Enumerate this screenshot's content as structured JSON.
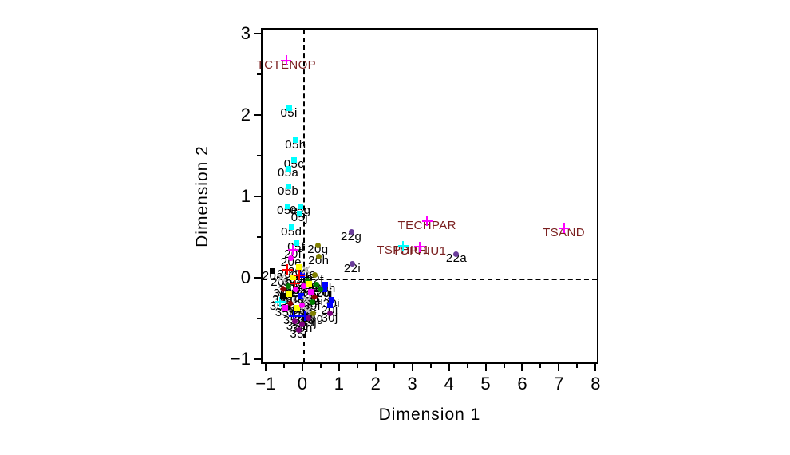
{
  "colors": {
    "background": "#ffffff",
    "axis": "#000000",
    "point_label": "#000000",
    "supplementary_label": "#7a1f1f",
    "magenta": "#ff00ff",
    "cyan": "#00ffff",
    "purple": "#6a3d9a"
  },
  "chart_data": {
    "type": "scatter",
    "title": "",
    "xlabel": "Dimension 1",
    "ylabel": "Dimension 2",
    "xlim": [
      -1.13,
      8.08
    ],
    "ylim": [
      -1.06,
      3.07
    ],
    "grid": false,
    "legend": "none",
    "reference_lines": {
      "x_zero": 0,
      "y_zero": 0,
      "style": "dashed"
    },
    "x_major_ticks": [
      -1,
      0,
      1,
      2,
      3,
      4,
      5,
      6,
      7,
      8
    ],
    "x_tick_labels": [
      "−1",
      "0",
      "1",
      "2",
      "3",
      "4",
      "5",
      "6",
      "7",
      "8"
    ],
    "x_minor_ticks": [
      -0.5,
      0.5,
      1.5,
      2.5,
      3.5,
      4.5,
      5.5,
      6.5,
      7.5
    ],
    "y_major_ticks": [
      3,
      2,
      1,
      0,
      -1
    ],
    "y_tick_labels": [
      "3",
      "2",
      "1",
      "0",
      "−1"
    ],
    "y_minor_ticks": [
      2.5,
      1.5,
      0.5,
      -0.5
    ],
    "series": [
      {
        "name": "supplementary-variables",
        "label_color": "#7a1f1f",
        "points": [
          {
            "label": "TCTENOP",
            "x": -0.48,
            "y": 2.69,
            "marker": "plus",
            "color": "#ff00ff"
          },
          {
            "label": "TECHPAR",
            "x": 3.36,
            "y": 0.72,
            "marker": "plus",
            "color": "#ff00ff"
          },
          {
            "label": "TSPHIU1",
            "x": 2.71,
            "y": 0.41,
            "marker": "plus",
            "color": "#00ffff"
          },
          {
            "label": "TOPHIU1",
            "x": 3.15,
            "y": 0.4,
            "marker": "plus",
            "color": "#ff00ff"
          },
          {
            "label": "TSAND",
            "x": 7.09,
            "y": 0.63,
            "marker": "plus",
            "color": "#ff00ff"
          }
        ]
      },
      {
        "name": "05-series",
        "label_color": "#000000",
        "points": [
          {
            "label": "05i",
            "x": -0.41,
            "y": 2.1,
            "marker": "square",
            "color": "#00ffff"
          },
          {
            "label": "05h",
            "x": -0.23,
            "y": 1.71,
            "marker": "square",
            "color": "#00ffff"
          },
          {
            "label": "05c",
            "x": -0.27,
            "y": 1.47,
            "marker": "square",
            "color": "#00ffff"
          },
          {
            "label": "05a",
            "x": -0.43,
            "y": 1.36,
            "marker": "square",
            "color": "#00ffff"
          },
          {
            "label": "05b",
            "x": -0.43,
            "y": 1.14,
            "marker": "square",
            "color": "#00ffff"
          },
          {
            "label": "05e",
            "x": -0.45,
            "y": 0.9,
            "marker": "square",
            "color": "#00ffff"
          },
          {
            "label": "05g",
            "x": -0.1,
            "y": 0.9,
            "marker": "square",
            "color": "#00ffff"
          },
          {
            "label": "05j",
            "x": -0.12,
            "y": 0.81,
            "marker": "square",
            "color": "#00ffff"
          },
          {
            "label": "05d",
            "x": -0.34,
            "y": 0.64,
            "marker": "square",
            "color": "#00ffff"
          },
          {
            "label": "05f",
            "x": -0.21,
            "y": 0.45,
            "marker": "square",
            "color": "#00ffff"
          }
        ]
      },
      {
        "name": "22-series-outliers",
        "label_color": "#000000",
        "points": [
          {
            "label": "22g",
            "x": 1.29,
            "y": 0.58,
            "marker": "circle",
            "color": "#6a3d9a"
          },
          {
            "label": "22i",
            "x": 1.32,
            "y": 0.19,
            "marker": "circle",
            "color": "#6a3d9a"
          },
          {
            "label": "22a",
            "x": 4.16,
            "y": 0.31,
            "marker": "circle",
            "color": "#6a3d9a"
          }
        ]
      },
      {
        "name": "origin-cluster",
        "label_color": "#000000",
        "points": [
          {
            "label": "20f",
            "x": -0.3,
            "y": 0.36,
            "marker": "plus",
            "color": "#ff00ff"
          },
          {
            "label": "20e",
            "x": -0.35,
            "y": 0.26,
            "marker": "circle",
            "color": "#ff00ff"
          },
          {
            "label": "20g",
            "x": 0.38,
            "y": 0.42,
            "marker": "circle",
            "color": "#808000"
          },
          {
            "label": "20h",
            "x": 0.4,
            "y": 0.28,
            "marker": "circle",
            "color": "#808000"
          },
          {
            "label": "20a",
            "x": -0.85,
            "y": 0.1,
            "marker": "square",
            "color": "#000000"
          },
          {
            "label": "20b",
            "x": -0.62,
            "y": 0.02,
            "marker": "x",
            "color": "#c0c0c0"
          },
          {
            "label": "20c",
            "x": -0.45,
            "y": 0.12,
            "marker": "plus",
            "color": "#ff0000"
          },
          {
            "label": "20d",
            "x": -0.15,
            "y": 0.15,
            "marker": "square",
            "color": "#ffff00"
          },
          {
            "label": "20i",
            "x": 0.55,
            "y": -0.12,
            "marker": "square",
            "color": "#0000ff"
          },
          {
            "label": "20j",
            "x": 0.7,
            "y": -0.32,
            "marker": "square",
            "color": "#0000ff"
          },
          {
            "label": "22b",
            "x": -0.05,
            "y": 0.05,
            "marker": "square",
            "color": "#0000ff"
          },
          {
            "label": "22c",
            "x": 0.1,
            "y": -0.02,
            "marker": "circle",
            "color": "#008000"
          },
          {
            "label": "22d",
            "x": -0.25,
            "y": -0.05,
            "marker": "plus",
            "color": "#ff0000"
          },
          {
            "label": "22e",
            "x": 0.05,
            "y": 0.12,
            "marker": "x",
            "color": "#c0c0c0"
          },
          {
            "label": "22f",
            "x": 0.3,
            "y": 0.05,
            "marker": "circle",
            "color": "#808000"
          },
          {
            "label": "22h",
            "x": 0.35,
            "y": -0.06,
            "marker": "circle",
            "color": "#008000"
          },
          {
            "label": "22j",
            "x": 0.18,
            "y": -0.15,
            "marker": "square",
            "color": "#ff00ff"
          },
          {
            "label": "30a",
            "x": -0.55,
            "y": -0.12,
            "marker": "diamond",
            "color": "#8b0000"
          },
          {
            "label": "30b",
            "x": -0.4,
            "y": -0.18,
            "marker": "square",
            "color": "#ffff00"
          },
          {
            "label": "30c",
            "x": -0.22,
            "y": -0.12,
            "marker": "circle",
            "color": "#ff00ff"
          },
          {
            "label": "30d",
            "x": -0.08,
            "y": -0.2,
            "marker": "square",
            "color": "#0000ff"
          },
          {
            "label": "30e",
            "x": 0.08,
            "y": -0.25,
            "marker": "x",
            "color": "#c0c0c0"
          },
          {
            "label": "30f",
            "x": 0.22,
            "y": -0.28,
            "marker": "circle",
            "color": "#008000"
          },
          {
            "label": "30g",
            "x": 0.45,
            "y": -0.12,
            "marker": "circle",
            "color": "#008000"
          },
          {
            "label": "30h",
            "x": 0.58,
            "y": -0.06,
            "marker": "square",
            "color": "#0000ff"
          },
          {
            "label": "30i",
            "x": 0.75,
            "y": -0.25,
            "marker": "square",
            "color": "#0000ff"
          },
          {
            "label": "30j",
            "x": 0.7,
            "y": -0.42,
            "marker": "circle",
            "color": "#800080"
          },
          {
            "label": "35a",
            "x": -0.65,
            "y": -0.28,
            "marker": "plus",
            "color": "#00ffff"
          },
          {
            "label": "35b",
            "x": -0.5,
            "y": -0.35,
            "marker": "square",
            "color": "#ff00ff"
          },
          {
            "label": "35c",
            "x": -0.35,
            "y": -0.3,
            "marker": "diamond",
            "color": "#8b0000"
          },
          {
            "label": "35d",
            "x": -0.18,
            "y": -0.35,
            "marker": "square",
            "color": "#ffff00"
          },
          {
            "label": "35e",
            "x": -0.05,
            "y": -0.32,
            "marker": "circle",
            "color": "#ff00ff"
          },
          {
            "label": "35f",
            "x": 0.1,
            "y": -0.38,
            "marker": "x",
            "color": "#c0c0c0"
          },
          {
            "label": "35g",
            "x": 0.25,
            "y": -0.42,
            "marker": "circle",
            "color": "#808000"
          },
          {
            "label": "35h",
            "x": -0.28,
            "y": -0.45,
            "marker": "plus",
            "color": "#0000ff"
          },
          {
            "label": "35j",
            "x": -0.25,
            "y": -0.52,
            "marker": "circle",
            "color": "#800080"
          },
          {
            "label": "35i",
            "x": -0.15,
            "y": -0.62,
            "marker": "circle",
            "color": "#800080"
          },
          {
            "label": "39a",
            "x": -0.58,
            "y": -0.2,
            "marker": "square",
            "color": "#000000"
          },
          {
            "label": "39b",
            "x": -0.42,
            "y": -0.08,
            "marker": "circle",
            "color": "#008000"
          },
          {
            "label": "39c",
            "x": -0.3,
            "y": 0.02,
            "marker": "square",
            "color": "#ffff00"
          },
          {
            "label": "39d",
            "x": -0.12,
            "y": 0.05,
            "marker": "plus",
            "color": "#ff0000"
          },
          {
            "label": "39e",
            "x": 0.0,
            "y": -0.08,
            "marker": "circle",
            "color": "#ff00ff"
          },
          {
            "label": "39f",
            "x": 0.15,
            "y": -0.05,
            "marker": "square",
            "color": "#ffff00"
          },
          {
            "label": "39g",
            "x": 0.02,
            "y": -0.45,
            "marker": "plus",
            "color": "#0000ff"
          },
          {
            "label": "39h",
            "x": -0.05,
            "y": -0.55,
            "marker": "circle",
            "color": "#800080"
          },
          {
            "label": "39i",
            "x": 0.3,
            "y": -0.22,
            "marker": "diamond",
            "color": "#8b0000"
          },
          {
            "label": "39j",
            "x": 0.12,
            "y": -0.48,
            "marker": "circle",
            "color": "#800080"
          }
        ]
      }
    ]
  }
}
